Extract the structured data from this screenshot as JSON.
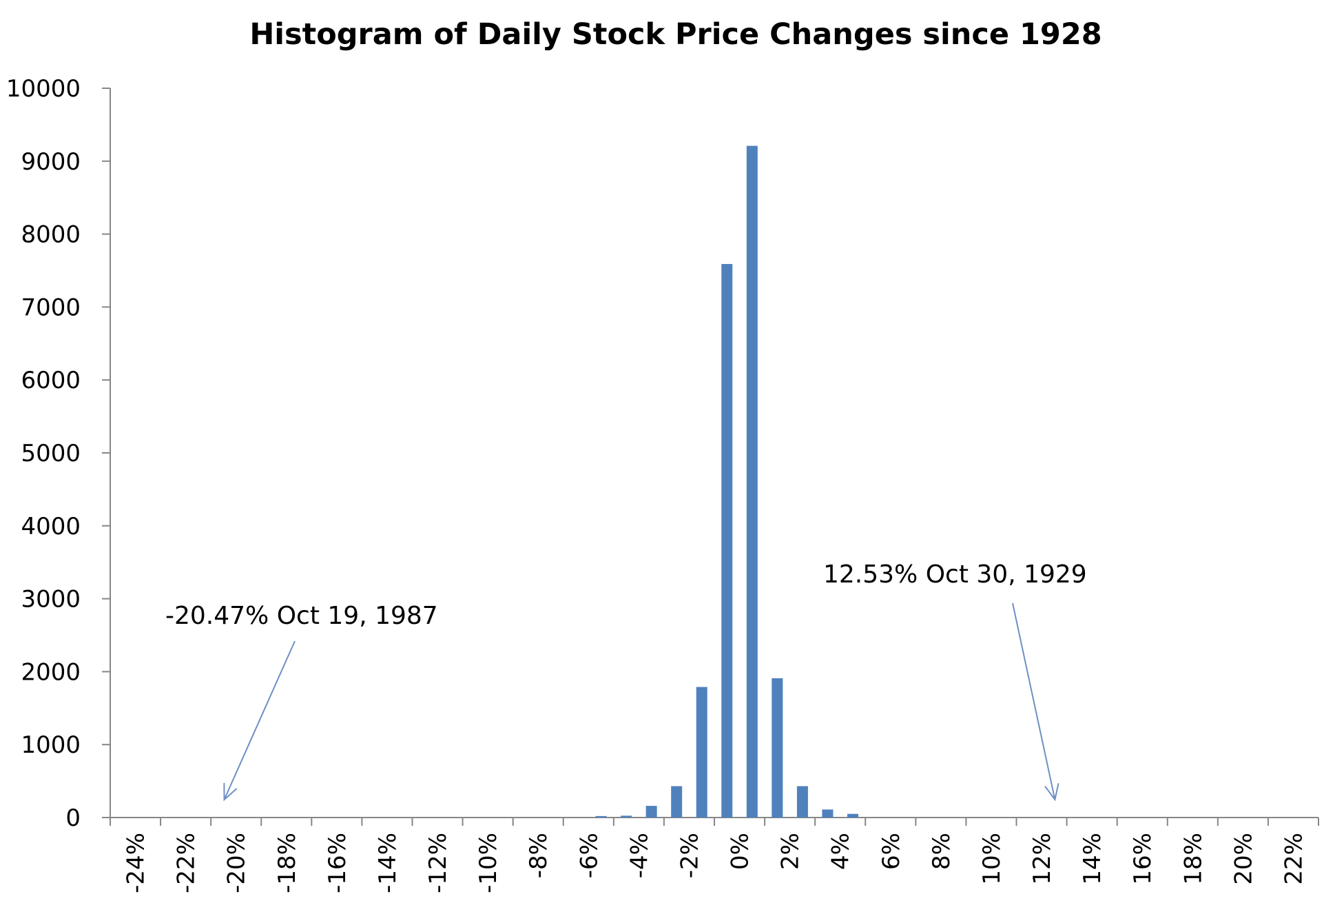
{
  "chart_data": {
    "type": "bar",
    "title": "Histogram of Daily Stock Price Changes  since 1928",
    "xlabel": "",
    "ylabel": "",
    "ylim": [
      0,
      10000
    ],
    "yticks": [
      0,
      1000,
      2000,
      3000,
      4000,
      5000,
      6000,
      7000,
      8000,
      9000,
      10000
    ],
    "bar_color": "#4f81bd",
    "axis_color": "#868686",
    "annotation_arrow_color": "#6f8fc2",
    "x_category_labels": [
      "-24%",
      "-22%",
      "-20%",
      "-18%",
      "-16%",
      "-14%",
      "-12%",
      "-10%",
      "-8%",
      "-6%",
      "-4%",
      "-2%",
      "0%",
      "2%",
      "4%",
      "6%",
      "8%",
      "10%",
      "12%",
      "14%",
      "16%",
      "18%",
      "20%",
      "22%"
    ],
    "bins": [
      {
        "center_pct": -5.5,
        "count": 20
      },
      {
        "center_pct": -4.5,
        "count": 25
      },
      {
        "center_pct": -3.5,
        "count": 160
      },
      {
        "center_pct": -2.5,
        "count": 430
      },
      {
        "center_pct": -1.5,
        "count": 1790
      },
      {
        "center_pct": -0.5,
        "count": 7590
      },
      {
        "center_pct": 0.5,
        "count": 9210
      },
      {
        "center_pct": 1.5,
        "count": 1910
      },
      {
        "center_pct": 2.5,
        "count": 430
      },
      {
        "center_pct": 3.5,
        "count": 110
      },
      {
        "center_pct": 4.5,
        "count": 50
      }
    ],
    "annotations": [
      {
        "text": "-20.47% Oct 19, 1987",
        "x_pct": -20.47,
        "y": 0
      },
      {
        "text": "12.53% Oct 30, 1929",
        "x_pct": 12.53,
        "y": 0
      }
    ]
  }
}
